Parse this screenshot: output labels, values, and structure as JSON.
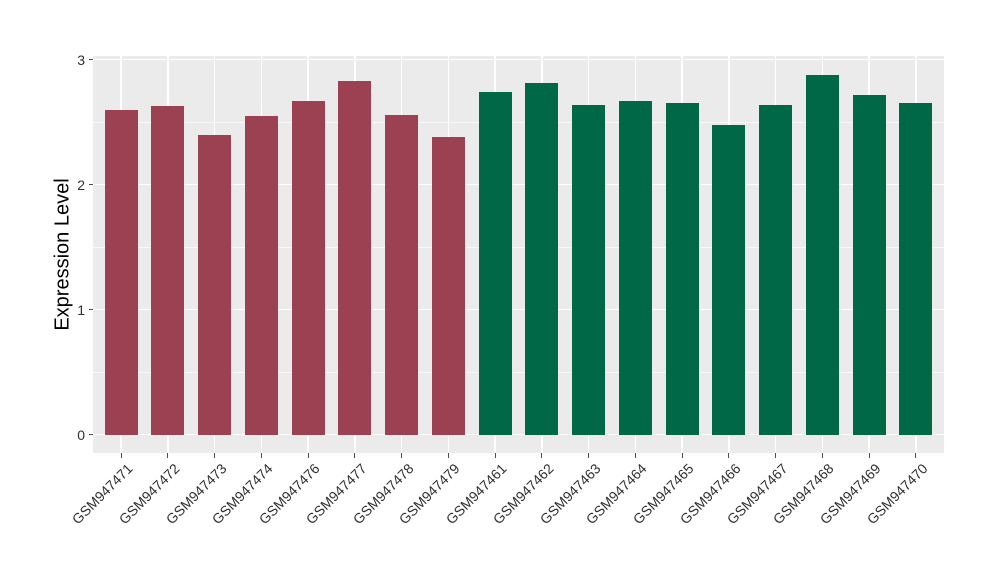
{
  "chart_data": {
    "type": "bar",
    "title": "",
    "xlabel": "",
    "ylabel": "Expression Level",
    "ylim": [
      0,
      3
    ],
    "yticks": [
      0,
      1,
      2,
      3
    ],
    "grid": true,
    "legend_position": "none",
    "categories": [
      "GSM947471",
      "GSM947472",
      "GSM947473",
      "GSM947474",
      "GSM947476",
      "GSM947477",
      "GSM947478",
      "GSM947479",
      "GSM947461",
      "GSM947462",
      "GSM947463",
      "GSM947464",
      "GSM947465",
      "GSM947466",
      "GSM947467",
      "GSM947468",
      "GSM947469",
      "GSM947470"
    ],
    "values": [
      2.6,
      2.63,
      2.4,
      2.55,
      2.67,
      2.83,
      2.56,
      2.38,
      2.74,
      2.81,
      2.64,
      2.67,
      2.65,
      2.48,
      2.64,
      2.88,
      2.72,
      2.65
    ],
    "bar_groups": [
      "group1",
      "group1",
      "group1",
      "group1",
      "group1",
      "group1",
      "group1",
      "group1",
      "group2",
      "group2",
      "group2",
      "group2",
      "group2",
      "group2",
      "group2",
      "group2",
      "group2",
      "group2"
    ],
    "group_colors": {
      "group1": "#9C4152",
      "group2": "#006847"
    },
    "colors": {
      "figure_background": "#FFFFFF",
      "panel_background": "#EBEBEB",
      "grid_major": "#FFFFFF",
      "grid_minor": "#FFFFFF",
      "axis_text": "#303030",
      "axis_title": "#000000",
      "tick_marks": "#4D4D4D"
    }
  }
}
